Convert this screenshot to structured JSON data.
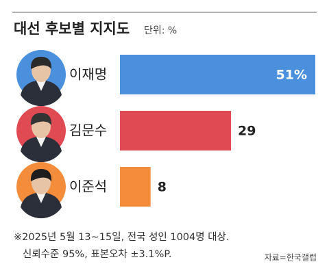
{
  "chart_data": {
    "type": "bar",
    "orientation": "horizontal",
    "title": "대선 후보별 지지도",
    "unit": "단위: %",
    "categories": [
      "이재명",
      "김문수",
      "이준석"
    ],
    "values": [
      51,
      29,
      8
    ],
    "value_labels": [
      "51%",
      "29",
      "8"
    ],
    "colors": [
      "#4a90dc",
      "#e04a52",
      "#f38d3b"
    ],
    "notes": [
      "※2025년 5월 13~15일, 전국 성인 1004명 대상.",
      "신뢰수준 95%, 표본오차 ±3.1%P."
    ],
    "source": "자료=한국갤럽"
  }
}
